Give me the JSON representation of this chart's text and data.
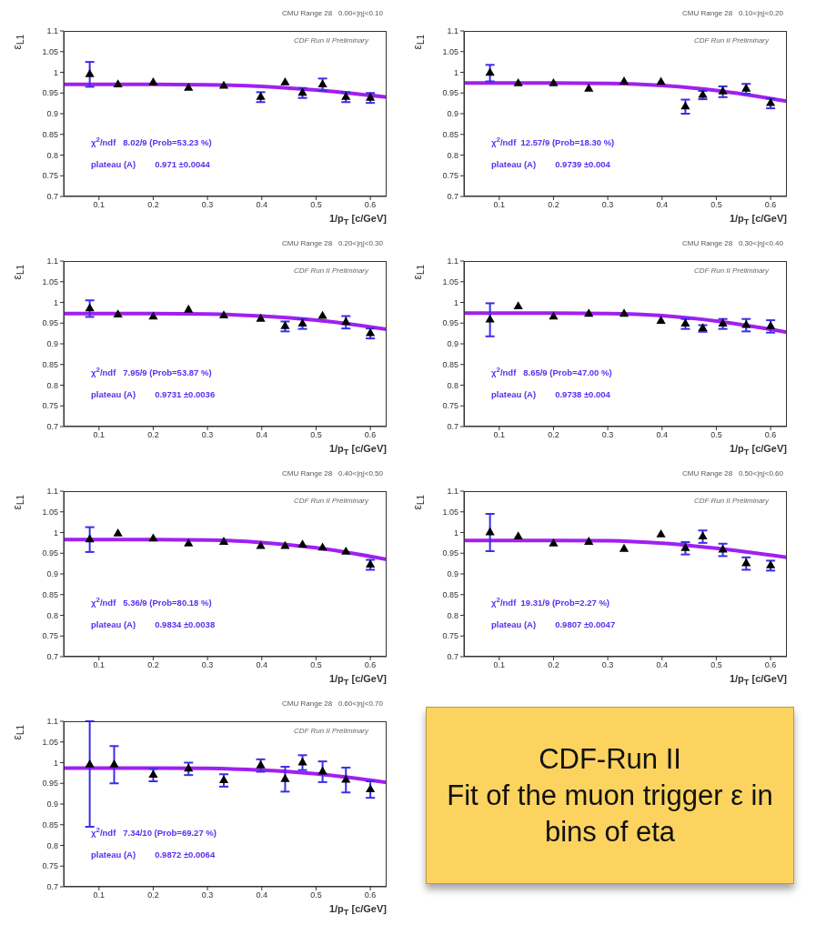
{
  "chart_data": [
    {
      "type": "scatter",
      "subtitle": "CMU Range 28   0.00<|η|<0.10",
      "xlabel": "1/p$_{T}$ [c/GeV]",
      "ylabel": "ε$_{L1}$",
      "xlim": [
        0.035,
        0.63
      ],
      "xticks": [
        0.1,
        0.2,
        0.3,
        0.4,
        0.5,
        0.6
      ],
      "ylim": [
        0.7,
        1.1
      ],
      "yticks": [
        0.7,
        0.75,
        0.8,
        0.85,
        0.9,
        0.95,
        1,
        1.05,
        1.1
      ],
      "annotations": [
        "CDF Run II Preliminary",
        "χ$^{2}$/ndf   8.02/9 (Prob=53.23 %)",
        "plateau (A)        0.971 ±0.0044"
      ],
      "series": [
        {
          "type": "line",
          "color": "#a020f0",
          "x": [
            0.035,
            0.1,
            0.2,
            0.3,
            0.4,
            0.5,
            0.63
          ],
          "values": [
            0.971,
            0.971,
            0.971,
            0.97,
            0.966,
            0.957,
            0.94
          ]
        },
        {
          "type": "scatter",
          "color": "#000000",
          "marker": "triangle",
          "x": [
            0.083,
            0.135,
            0.2,
            0.265,
            0.33,
            0.398,
            0.443,
            0.475,
            0.512,
            0.555,
            0.6
          ],
          "values": [
            0.995,
            0.97,
            0.975,
            0.962,
            0.967,
            0.94,
            0.975,
            0.95,
            0.97,
            0.94,
            0.938
          ],
          "errors": [
            0.03,
            null,
            null,
            null,
            null,
            0.012,
            null,
            0.012,
            0.015,
            0.012,
            0.012
          ]
        }
      ]
    },
    {
      "type": "scatter",
      "subtitle": "CMU Range 28   0.10<|η|<0.20",
      "xlabel": "1/p$_{T}$ [c/GeV]",
      "ylabel": "ε$_{L1}$",
      "xlim": [
        0.035,
        0.63
      ],
      "xticks": [
        0.1,
        0.2,
        0.3,
        0.4,
        0.5,
        0.6
      ],
      "ylim": [
        0.7,
        1.1
      ],
      "yticks": [
        0.7,
        0.75,
        0.8,
        0.85,
        0.9,
        0.95,
        1,
        1.05,
        1.1
      ],
      "annotations": [
        "CDF Run II Preliminary",
        "χ$^{2}$/ndf  12.57/9 (Prob=18.30 %)",
        "plateau (A)        0.9739 ±0.004"
      ],
      "series": [
        {
          "type": "line",
          "color": "#a020f0",
          "x": [
            0.035,
            0.1,
            0.2,
            0.3,
            0.4,
            0.5,
            0.63
          ],
          "values": [
            0.974,
            0.974,
            0.974,
            0.973,
            0.968,
            0.956,
            0.93
          ]
        },
        {
          "type": "scatter",
          "color": "#000000",
          "marker": "triangle",
          "x": [
            0.083,
            0.135,
            0.2,
            0.265,
            0.33,
            0.398,
            0.443,
            0.475,
            0.512,
            0.555,
            0.6
          ],
          "values": [
            0.998,
            0.973,
            0.973,
            0.96,
            0.977,
            0.976,
            0.917,
            0.945,
            0.953,
            0.96,
            0.925
          ],
          "errors": [
            0.02,
            null,
            null,
            null,
            null,
            null,
            0.017,
            0.01,
            0.013,
            0.012,
            0.012
          ]
        }
      ]
    },
    {
      "type": "scatter",
      "subtitle": "CMU Range 28   0.20<|η|<0.30",
      "xlabel": "1/p$_{T}$ [c/GeV]",
      "ylabel": "ε$_{L1}$",
      "xlim": [
        0.035,
        0.63
      ],
      "xticks": [
        0.1,
        0.2,
        0.3,
        0.4,
        0.5,
        0.6
      ],
      "ylim": [
        0.7,
        1.1
      ],
      "yticks": [
        0.7,
        0.75,
        0.8,
        0.85,
        0.9,
        0.95,
        1,
        1.05,
        1.1
      ],
      "annotations": [
        "CDF Run II Preliminary",
        "χ$^{2}$/ndf   7.95/9 (Prob=53.87 %)",
        "plateau (A)        0.9731 ±0.0036"
      ],
      "series": [
        {
          "type": "line",
          "color": "#a020f0",
          "x": [
            0.035,
            0.1,
            0.2,
            0.3,
            0.4,
            0.5,
            0.63
          ],
          "values": [
            0.973,
            0.973,
            0.973,
            0.972,
            0.967,
            0.957,
            0.935
          ]
        },
        {
          "type": "scatter",
          "color": "#000000",
          "marker": "triangle",
          "x": [
            0.083,
            0.135,
            0.2,
            0.265,
            0.33,
            0.398,
            0.443,
            0.475,
            0.512,
            0.555,
            0.6
          ],
          "values": [
            0.985,
            0.97,
            0.965,
            0.982,
            0.968,
            0.96,
            0.942,
            0.948,
            0.967,
            0.952,
            0.925
          ],
          "errors": [
            0.02,
            null,
            null,
            null,
            null,
            null,
            0.012,
            0.012,
            null,
            0.015,
            0.012
          ]
        }
      ]
    },
    {
      "type": "scatter",
      "subtitle": "CMU Range 28   0.30<|η|<0.40",
      "xlabel": "1/p$_{T}$ [c/GeV]",
      "ylabel": "ε$_{L1}$",
      "xlim": [
        0.035,
        0.63
      ],
      "xticks": [
        0.1,
        0.2,
        0.3,
        0.4,
        0.5,
        0.6
      ],
      "ylim": [
        0.7,
        1.1
      ],
      "yticks": [
        0.7,
        0.75,
        0.8,
        0.85,
        0.9,
        0.95,
        1,
        1.05,
        1.1
      ],
      "annotations": [
        "CDF Run II Preliminary",
        "χ$^{2}$/ndf   8.65/9 (Prob=47.00 %)",
        "plateau (A)        0.9738 ±0.004"
      ],
      "series": [
        {
          "type": "line",
          "color": "#a020f0",
          "x": [
            0.035,
            0.1,
            0.2,
            0.3,
            0.4,
            0.5,
            0.63
          ],
          "values": [
            0.974,
            0.974,
            0.974,
            0.973,
            0.968,
            0.955,
            0.928
          ]
        },
        {
          "type": "scatter",
          "color": "#000000",
          "marker": "triangle",
          "x": [
            0.083,
            0.135,
            0.2,
            0.265,
            0.33,
            0.398,
            0.443,
            0.475,
            0.512,
            0.555,
            0.6
          ],
          "values": [
            0.958,
            0.99,
            0.965,
            0.972,
            0.972,
            0.955,
            0.948,
            0.937,
            0.948,
            0.945,
            0.942
          ],
          "errors": [
            0.04,
            null,
            null,
            null,
            null,
            null,
            0.012,
            0.008,
            0.012,
            0.015,
            0.015
          ]
        }
      ]
    },
    {
      "type": "scatter",
      "subtitle": "CMU Range 28   0.40<|η|<0.50",
      "xlabel": "1/p$_{T}$ [c/GeV]",
      "ylabel": "ε$_{L1}$",
      "xlim": [
        0.035,
        0.63
      ],
      "xticks": [
        0.1,
        0.2,
        0.3,
        0.4,
        0.5,
        0.6
      ],
      "ylim": [
        0.7,
        1.1
      ],
      "yticks": [
        0.7,
        0.75,
        0.8,
        0.85,
        0.9,
        0.95,
        1,
        1.05,
        1.1
      ],
      "annotations": [
        "CDF Run II Preliminary",
        "χ$^{2}$/ndf   5.36/9 (Prob=80.18 %)",
        "plateau (A)        0.9834 ±0.0038"
      ],
      "series": [
        {
          "type": "line",
          "color": "#a020f0",
          "x": [
            0.035,
            0.1,
            0.2,
            0.3,
            0.4,
            0.5,
            0.63
          ],
          "values": [
            0.983,
            0.983,
            0.983,
            0.982,
            0.976,
            0.963,
            0.935
          ]
        },
        {
          "type": "scatter",
          "color": "#000000",
          "marker": "triangle",
          "x": [
            0.083,
            0.135,
            0.2,
            0.265,
            0.33,
            0.398,
            0.443,
            0.475,
            0.512,
            0.555,
            0.6
          ],
          "values": [
            0.983,
            0.997,
            0.985,
            0.973,
            0.977,
            0.967,
            0.967,
            0.97,
            0.963,
            0.953,
            0.922
          ],
          "errors": [
            0.03,
            null,
            null,
            null,
            null,
            null,
            null,
            null,
            null,
            null,
            0.012
          ]
        }
      ]
    },
    {
      "type": "scatter",
      "subtitle": "CMU Range 28   0.50<|η|<0.60",
      "xlabel": "1/p$_{T}$ [c/GeV]",
      "ylabel": "ε$_{L1}$",
      "xlim": [
        0.035,
        0.63
      ],
      "xticks": [
        0.1,
        0.2,
        0.3,
        0.4,
        0.5,
        0.6
      ],
      "ylim": [
        0.7,
        1.1
      ],
      "yticks": [
        0.7,
        0.75,
        0.8,
        0.85,
        0.9,
        0.95,
        1,
        1.05,
        1.1
      ],
      "annotations": [
        "CDF Run II Preliminary",
        "χ$^{2}$/ndf  19.31/9 (Prob=2.27 %)",
        "plateau (A)        0.9807 ±0.0047"
      ],
      "series": [
        {
          "type": "line",
          "color": "#a020f0",
          "x": [
            0.035,
            0.1,
            0.2,
            0.3,
            0.4,
            0.5,
            0.63
          ],
          "values": [
            0.981,
            0.981,
            0.981,
            0.98,
            0.974,
            0.962,
            0.94
          ]
        },
        {
          "type": "scatter",
          "color": "#000000",
          "marker": "triangle",
          "x": [
            0.083,
            0.135,
            0.2,
            0.265,
            0.33,
            0.398,
            0.443,
            0.475,
            0.512,
            0.555,
            0.6
          ],
          "values": [
            1,
            0.99,
            0.973,
            0.977,
            0.96,
            0.995,
            0.962,
            0.99,
            0.958,
            0.925,
            0.92
          ],
          "errors": [
            0.045,
            null,
            null,
            null,
            null,
            null,
            0.015,
            0.015,
            0.015,
            0.015,
            0.012
          ]
        }
      ]
    },
    {
      "type": "scatter",
      "subtitle": "CMU Range 28   0.60<|η|<0.70",
      "xlabel": "1/p$_{T}$ [c/GeV]",
      "ylabel": "ε$_{L1}$",
      "xlim": [
        0.035,
        0.63
      ],
      "xticks": [
        0.1,
        0.2,
        0.3,
        0.4,
        0.5,
        0.6
      ],
      "ylim": [
        0.7,
        1.1
      ],
      "yticks": [
        0.7,
        0.75,
        0.8,
        0.85,
        0.9,
        0.95,
        1,
        1.05,
        1.1
      ],
      "annotations": [
        "CDF Run II Preliminary",
        "χ$^{2}$/ndf   7.34/10 (Prob=69.27 %)",
        "plateau (A)        0.9872 ±0.0064"
      ],
      "series": [
        {
          "type": "line",
          "color": "#a020f0",
          "x": [
            0.035,
            0.1,
            0.2,
            0.3,
            0.4,
            0.5,
            0.63
          ],
          "values": [
            0.987,
            0.987,
            0.987,
            0.986,
            0.982,
            0.973,
            0.952
          ]
        },
        {
          "type": "scatter",
          "color": "#000000",
          "marker": "triangle",
          "x": [
            0.083,
            0.128,
            0.2,
            0.265,
            0.33,
            0.398,
            0.443,
            0.475,
            0.512,
            0.555,
            0.6
          ],
          "values": [
            0.995,
            0.995,
            0.97,
            0.985,
            0.957,
            0.993,
            0.96,
            1,
            0.978,
            0.958,
            0.935
          ],
          "errors": [
            [
              0.845,
              1.1
            ],
            0.045,
            0.015,
            0.015,
            0.015,
            0.015,
            0.03,
            0.018,
            0.025,
            0.03,
            0.02
          ]
        }
      ]
    },
    {
      "type": "other",
      "title": "CDF-Run II",
      "annotations": [
        "Fit of the muon trigger ε in bins of eta"
      ]
    }
  ]
}
